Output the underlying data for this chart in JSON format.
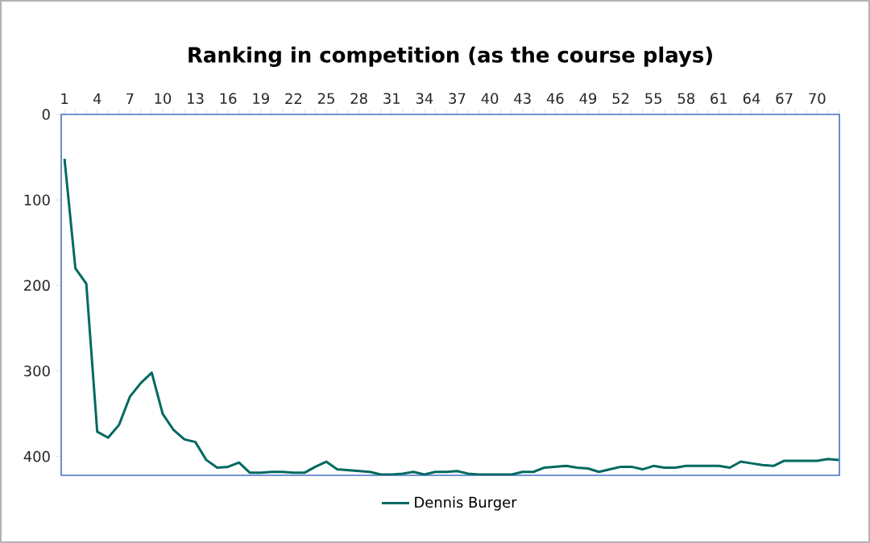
{
  "chart_data": {
    "type": "line",
    "title": "Ranking in competition (as the course plays)",
    "categories": [
      "1",
      null,
      null,
      "4",
      null,
      null,
      "7",
      null,
      null,
      "10",
      null,
      null,
      "13",
      null,
      null,
      "16",
      null,
      null,
      "19",
      null,
      null,
      "22",
      null,
      null,
      "25",
      null,
      null,
      "28",
      null,
      null,
      "31",
      null,
      null,
      "34",
      null,
      null,
      "37",
      null,
      null,
      "40",
      null,
      null,
      "43",
      null,
      null,
      "46",
      null,
      null,
      "49",
      null,
      null,
      "52",
      null,
      null,
      "55",
      null,
      null,
      "58",
      null,
      null,
      "61",
      null,
      null,
      "64",
      null,
      null,
      "67",
      null,
      null,
      "70",
      null,
      null
    ],
    "series": [
      {
        "name": "Dennis Burger",
        "color": "#00695f",
        "values": [
          52,
          180,
          198,
          371,
          378,
          363,
          330,
          314,
          302,
          350,
          369,
          380,
          383,
          404,
          413,
          412,
          407,
          419,
          419,
          418,
          418,
          419,
          419,
          412,
          406,
          415,
          416,
          417,
          418,
          421,
          421,
          420,
          418,
          421,
          418,
          418,
          417,
          420,
          421,
          421,
          421,
          421,
          418,
          418,
          413,
          412,
          411,
          413,
          414,
          418,
          415,
          412,
          412,
          415,
          411,
          413,
          413,
          411,
          411,
          411,
          411,
          413,
          406,
          408,
          410,
          411,
          405,
          405,
          405,
          405,
          403,
          404
        ]
      }
    ],
    "ylim": [
      422,
      0
    ],
    "yticks": [
      0,
      100,
      200,
      300,
      400
    ],
    "grid": false,
    "legend": "bottom",
    "marker": "none",
    "line_style": "solid"
  }
}
